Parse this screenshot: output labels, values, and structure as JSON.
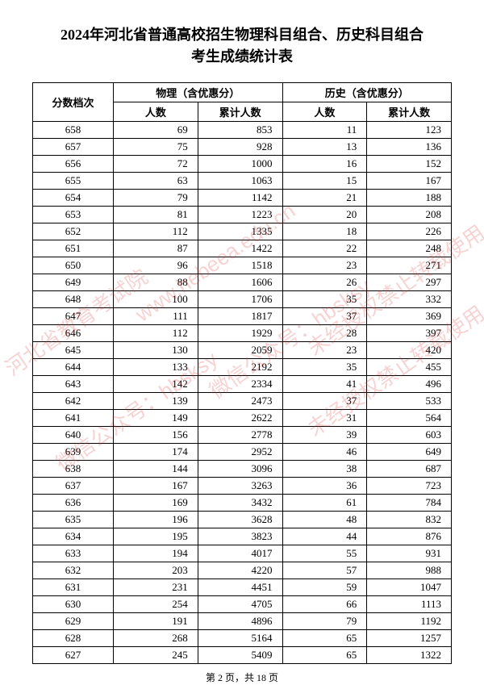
{
  "title_line1": "2024年河北省普通高校招生物理科目组合、历史科目组合",
  "title_line2": "考生成绩统计表",
  "header": {
    "score": "分数档次",
    "physics": "物理（含优惠分）",
    "history": "历史（含优惠分）",
    "count": "人数",
    "cumulative": "累计人数"
  },
  "rows": [
    {
      "score": "658",
      "p_count": "69",
      "p_cum": "853",
      "h_count": "11",
      "h_cum": "123"
    },
    {
      "score": "657",
      "p_count": "75",
      "p_cum": "928",
      "h_count": "13",
      "h_cum": "136"
    },
    {
      "score": "656",
      "p_count": "72",
      "p_cum": "1000",
      "h_count": "16",
      "h_cum": "152"
    },
    {
      "score": "655",
      "p_count": "63",
      "p_cum": "1063",
      "h_count": "15",
      "h_cum": "167"
    },
    {
      "score": "654",
      "p_count": "79",
      "p_cum": "1142",
      "h_count": "21",
      "h_cum": "188"
    },
    {
      "score": "653",
      "p_count": "81",
      "p_cum": "1223",
      "h_count": "20",
      "h_cum": "208"
    },
    {
      "score": "652",
      "p_count": "112",
      "p_cum": "1335",
      "h_count": "18",
      "h_cum": "226"
    },
    {
      "score": "651",
      "p_count": "87",
      "p_cum": "1422",
      "h_count": "22",
      "h_cum": "248"
    },
    {
      "score": "650",
      "p_count": "96",
      "p_cum": "1518",
      "h_count": "23",
      "h_cum": "271"
    },
    {
      "score": "649",
      "p_count": "88",
      "p_cum": "1606",
      "h_count": "26",
      "h_cum": "297"
    },
    {
      "score": "648",
      "p_count": "100",
      "p_cum": "1706",
      "h_count": "35",
      "h_cum": "332"
    },
    {
      "score": "647",
      "p_count": "111",
      "p_cum": "1817",
      "h_count": "37",
      "h_cum": "369"
    },
    {
      "score": "646",
      "p_count": "112",
      "p_cum": "1929",
      "h_count": "28",
      "h_cum": "397"
    },
    {
      "score": "645",
      "p_count": "130",
      "p_cum": "2059",
      "h_count": "23",
      "h_cum": "420"
    },
    {
      "score": "644",
      "p_count": "133",
      "p_cum": "2192",
      "h_count": "35",
      "h_cum": "455"
    },
    {
      "score": "643",
      "p_count": "142",
      "p_cum": "2334",
      "h_count": "41",
      "h_cum": "496"
    },
    {
      "score": "642",
      "p_count": "139",
      "p_cum": "2473",
      "h_count": "37",
      "h_cum": "533"
    },
    {
      "score": "641",
      "p_count": "149",
      "p_cum": "2622",
      "h_count": "31",
      "h_cum": "564"
    },
    {
      "score": "640",
      "p_count": "156",
      "p_cum": "2778",
      "h_count": "39",
      "h_cum": "603"
    },
    {
      "score": "639",
      "p_count": "174",
      "p_cum": "2952",
      "h_count": "46",
      "h_cum": "649"
    },
    {
      "score": "638",
      "p_count": "144",
      "p_cum": "3096",
      "h_count": "38",
      "h_cum": "687"
    },
    {
      "score": "637",
      "p_count": "167",
      "p_cum": "3263",
      "h_count": "36",
      "h_cum": "723"
    },
    {
      "score": "636",
      "p_count": "169",
      "p_cum": "3432",
      "h_count": "61",
      "h_cum": "784"
    },
    {
      "score": "635",
      "p_count": "196",
      "p_cum": "3628",
      "h_count": "48",
      "h_cum": "832"
    },
    {
      "score": "634",
      "p_count": "195",
      "p_cum": "3823",
      "h_count": "44",
      "h_cum": "876"
    },
    {
      "score": "633",
      "p_count": "194",
      "p_cum": "4017",
      "h_count": "55",
      "h_cum": "931"
    },
    {
      "score": "632",
      "p_count": "203",
      "p_cum": "4220",
      "h_count": "57",
      "h_cum": "988"
    },
    {
      "score": "631",
      "p_count": "231",
      "p_cum": "4451",
      "h_count": "59",
      "h_cum": "1047"
    },
    {
      "score": "630",
      "p_count": "254",
      "p_cum": "4705",
      "h_count": "66",
      "h_cum": "1113"
    },
    {
      "score": "629",
      "p_count": "191",
      "p_cum": "4896",
      "h_count": "79",
      "h_cum": "1192"
    },
    {
      "score": "628",
      "p_count": "268",
      "p_cum": "5164",
      "h_count": "65",
      "h_cum": "1257"
    },
    {
      "score": "627",
      "p_count": "245",
      "p_cum": "5409",
      "h_count": "65",
      "h_cum": "1322"
    }
  ],
  "watermarks": {
    "wm1": "河北省教育考试院",
    "wm2": "www.hebeea.edu.cn",
    "wm3": "微信公众号：hbsksy",
    "wm4": "微信公众号：hbsksy",
    "wm5": "未经授权禁止转载使用",
    "wm6": "未经授权禁止转载使用"
  },
  "footer": "第 2 页，共 18 页"
}
